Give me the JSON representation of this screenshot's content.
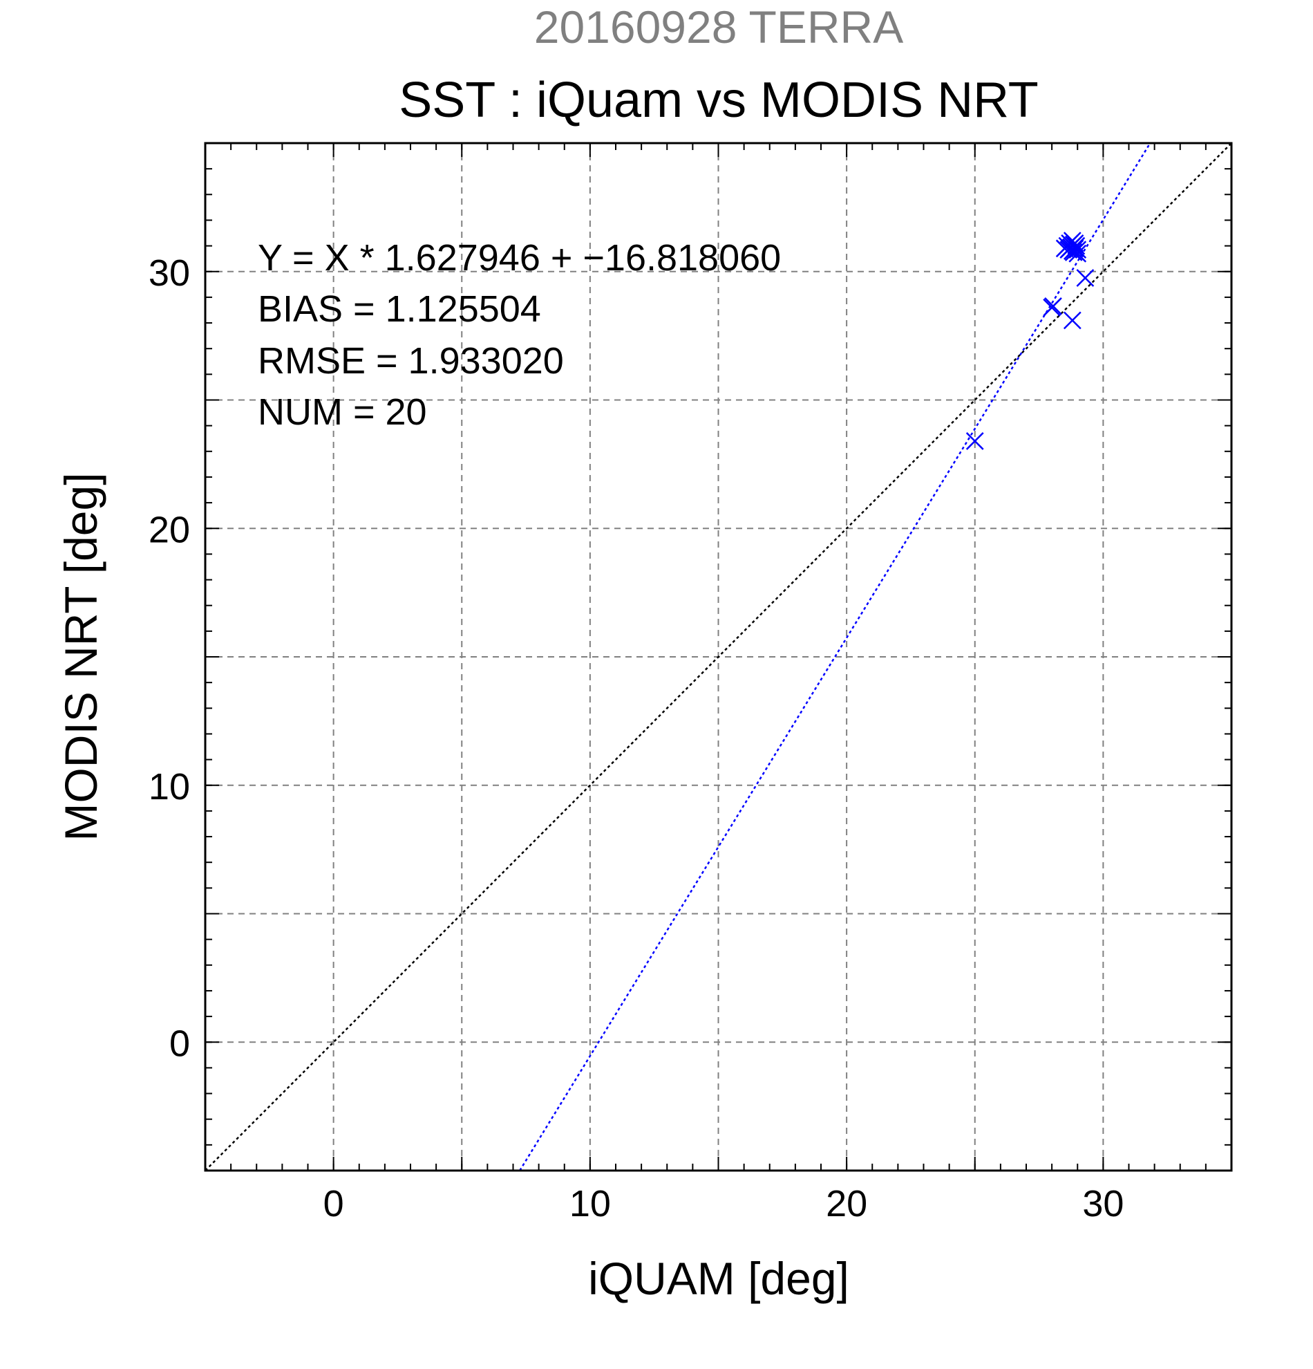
{
  "chart_data": {
    "type": "scatter",
    "supertitle": "20160928 TERRA",
    "title": "SST : iQuam vs MODIS NRT",
    "xlabel": "iQUAM [deg]",
    "ylabel": "MODIS NRT [deg]",
    "xlim": [
      -5,
      35
    ],
    "ylim": [
      -5,
      35
    ],
    "x_ticks": [
      0,
      10,
      20,
      30
    ],
    "y_ticks": [
      0,
      10,
      20,
      30
    ],
    "grid_step": 5,
    "minor_step": 1,
    "grid": true,
    "stats": {
      "equation": "Y = X * 1.627946 + −16.818060",
      "bias": "BIAS = 1.125504",
      "rmse": "RMSE = 1.933020",
      "num": "NUM = 20"
    },
    "regression": {
      "slope": 1.627946,
      "intercept": -16.81806,
      "color": "#0000ff"
    },
    "identity_line": {
      "color": "#000000"
    },
    "series": [
      {
        "marker": "x",
        "color": "#0000ff",
        "points": [
          [
            25.0,
            23.4
          ],
          [
            28.0,
            28.6
          ],
          [
            28.05,
            28.65
          ],
          [
            28.5,
            30.9
          ],
          [
            28.6,
            31.0
          ],
          [
            28.65,
            30.85
          ],
          [
            28.7,
            31.1
          ],
          [
            28.75,
            30.95
          ],
          [
            28.8,
            31.2
          ],
          [
            28.8,
            30.8
          ],
          [
            28.85,
            31.05
          ],
          [
            28.9,
            30.9
          ],
          [
            28.95,
            31.0
          ],
          [
            29.0,
            30.7
          ],
          [
            28.85,
            30.75
          ],
          [
            28.7,
            30.9
          ],
          [
            28.9,
            31.1
          ],
          [
            29.0,
            30.85
          ],
          [
            29.3,
            29.75
          ],
          [
            28.8,
            28.1
          ]
        ]
      }
    ]
  }
}
